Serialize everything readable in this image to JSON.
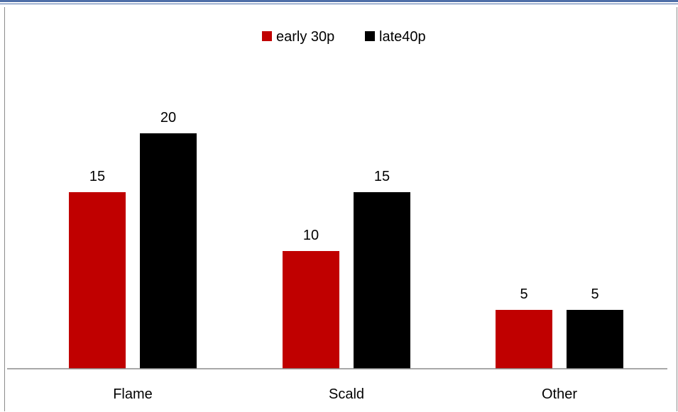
{
  "chart_data": {
    "type": "bar",
    "categories": [
      "Flame",
      "Scald",
      "Other"
    ],
    "series": [
      {
        "name": "early 30p",
        "color": "#c00000",
        "values": [
          15,
          10,
          5
        ]
      },
      {
        "name": "late40p",
        "color": "#000000",
        "values": [
          20,
          15,
          5
        ]
      }
    ],
    "ylim": [
      0,
      25
    ],
    "grid": false,
    "legend": "top-center",
    "data_labels": true
  }
}
